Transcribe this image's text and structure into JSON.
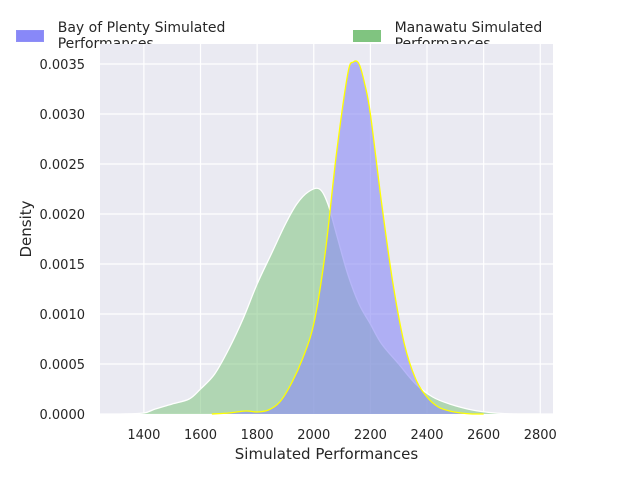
{
  "chart_data": {
    "type": "area",
    "xlabel": "Simulated Performances",
    "ylabel": "Density",
    "xlim": [
      1245,
      2845
    ],
    "ylim": [
      0,
      0.0037
    ],
    "x_ticks": [
      1400,
      1600,
      1800,
      2000,
      2200,
      2400,
      2600,
      2800
    ],
    "y_ticks": [
      0.0,
      0.0005,
      0.001,
      0.0015,
      0.002,
      0.0025,
      0.003,
      0.0035
    ],
    "grid": true,
    "legend_position": "top",
    "series": [
      {
        "name": "Bay of Plenty Simulated Performances",
        "fill_color": "#8f8ff5",
        "edge_color": "#ffff00",
        "fill_opacity": 0.65,
        "x": [
          1640,
          1700,
          1760,
          1800,
          1840,
          1880,
          1920,
          1960,
          2000,
          2040,
          2080,
          2120,
          2140,
          2160,
          2180,
          2200,
          2240,
          2280,
          2320,
          2360,
          2400,
          2440,
          2480,
          2520,
          2560,
          2600
        ],
        "y": [
          0.0,
          1e-05,
          3e-05,
          2e-05,
          4e-05,
          0.00012,
          0.0003,
          0.00055,
          0.0009,
          0.0016,
          0.0026,
          0.0034,
          0.00352,
          0.0035,
          0.0033,
          0.003,
          0.0021,
          0.0013,
          0.0007,
          0.00035,
          0.00017,
          7e-05,
          3e-05,
          1e-05,
          0.0,
          0.0
        ]
      },
      {
        "name": "Manawatu Simulated Performances",
        "fill_color": "#7fc47f",
        "edge_color": "#ffffff",
        "fill_opacity": 0.55,
        "x": [
          1320,
          1400,
          1440,
          1500,
          1560,
          1600,
          1650,
          1700,
          1750,
          1800,
          1850,
          1900,
          1940,
          1980,
          2020,
          2050,
          2080,
          2120,
          2160,
          2200,
          2240,
          2300,
          2360,
          2420,
          2480,
          2560,
          2640,
          2720,
          2800
        ],
        "y": [
          0.0,
          1e-05,
          5e-05,
          0.0001,
          0.00015,
          0.00025,
          0.0004,
          0.00065,
          0.00095,
          0.0013,
          0.0016,
          0.0019,
          0.0021,
          0.00222,
          0.00225,
          0.0021,
          0.0018,
          0.0014,
          0.0011,
          0.0009,
          0.0007,
          0.0005,
          0.0003,
          0.00017,
          0.0001,
          4e-05,
          1e-05,
          0.0,
          0.0
        ]
      }
    ]
  }
}
